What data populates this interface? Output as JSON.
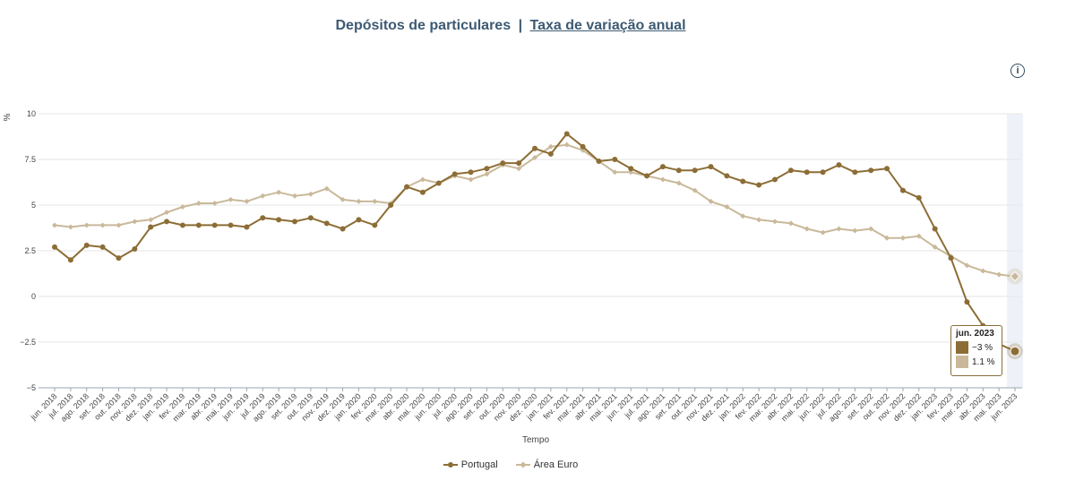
{
  "title": {
    "main": "Depósitos de particulares",
    "separator": "|",
    "link": "Taxa de variação anual"
  },
  "info_button": {
    "icon": "info-icon",
    "glyph": "i"
  },
  "tooltip": {
    "date": "jun. 2023",
    "portugal_value": "−3 %",
    "euro_value": "1.1 %"
  },
  "chart_data": {
    "type": "line",
    "ylabel": "%",
    "xlabel": "Tempo",
    "ylim": [
      -5,
      10
    ],
    "yticks": [
      10,
      7.5,
      5,
      2.5,
      0,
      -2.5,
      -5
    ],
    "ytick_labels": [
      "10",
      "7.5",
      "5",
      "2.5",
      "0",
      "−2.5",
      "−5"
    ],
    "grid": true,
    "legend_position": "bottom-center",
    "highlighted_category": "jun. 2023",
    "categories": [
      "jun. 2018",
      "jul. 2018",
      "ago. 2018",
      "set. 2018",
      "out. 2018",
      "nov. 2018",
      "dez. 2018",
      "jan. 2019",
      "fev. 2019",
      "mar. 2019",
      "abr. 2019",
      "mai. 2019",
      "jun. 2019",
      "jul. 2019",
      "ago. 2019",
      "set. 2019",
      "out. 2019",
      "nov. 2019",
      "dez. 2019",
      "jan. 2020",
      "fev. 2020",
      "mar. 2020",
      "abr. 2020",
      "mai. 2020",
      "jun. 2020",
      "jul. 2020",
      "ago. 2020",
      "set. 2020",
      "out. 2020",
      "nov. 2020",
      "dez. 2020",
      "jan. 2021",
      "fev. 2021",
      "mar. 2021",
      "abr. 2021",
      "mai. 2021",
      "jun. 2021",
      "jul. 2021",
      "ago. 2021",
      "set. 2021",
      "out. 2021",
      "nov. 2021",
      "dez. 2021",
      "jan. 2022",
      "fev. 2022",
      "mar. 2022",
      "abr. 2022",
      "mai. 2022",
      "jun. 2022",
      "jul. 2022",
      "ago. 2022",
      "set. 2022",
      "out. 2022",
      "nov. 2022",
      "dez. 2022",
      "jan. 2023",
      "fev. 2023",
      "mar. 2023",
      "abr. 2023",
      "mai. 2023",
      "jun. 2023"
    ],
    "series": [
      {
        "name": "Portugal",
        "color": "#8c6d35",
        "marker": "circle",
        "values": [
          2.7,
          2.0,
          2.8,
          2.7,
          2.1,
          2.6,
          3.8,
          4.1,
          3.9,
          3.9,
          3.9,
          3.9,
          3.8,
          4.3,
          4.2,
          4.1,
          4.3,
          4.0,
          3.7,
          4.2,
          3.9,
          5.0,
          6.0,
          5.7,
          6.2,
          6.7,
          6.8,
          7.0,
          7.3,
          7.3,
          8.1,
          7.8,
          8.9,
          8.2,
          7.4,
          7.5,
          7.0,
          6.6,
          7.1,
          6.9,
          6.9,
          7.1,
          6.6,
          6.3,
          6.1,
          6.4,
          6.9,
          6.8,
          6.8,
          7.2,
          6.8,
          6.9,
          7.0,
          5.8,
          5.4,
          3.7,
          2.1,
          -0.3,
          -1.6,
          -2.6,
          -3.0
        ]
      },
      {
        "name": "Área Euro",
        "color": "#c9b99a",
        "marker": "diamond",
        "values": [
          3.9,
          3.8,
          3.9,
          3.9,
          3.9,
          4.1,
          4.2,
          4.6,
          4.9,
          5.1,
          5.1,
          5.3,
          5.2,
          5.5,
          5.7,
          5.5,
          5.6,
          5.9,
          5.3,
          5.2,
          5.2,
          5.1,
          6.0,
          6.4,
          6.2,
          6.6,
          6.4,
          6.7,
          7.2,
          7.0,
          7.6,
          8.2,
          8.3,
          8.0,
          7.4,
          6.8,
          6.8,
          6.6,
          6.4,
          6.2,
          5.8,
          5.2,
          4.9,
          4.4,
          4.2,
          4.1,
          4.0,
          3.7,
          3.5,
          3.7,
          3.6,
          3.7,
          3.2,
          3.2,
          3.3,
          2.7,
          2.2,
          1.7,
          1.4,
          1.2,
          1.1
        ]
      }
    ]
  }
}
